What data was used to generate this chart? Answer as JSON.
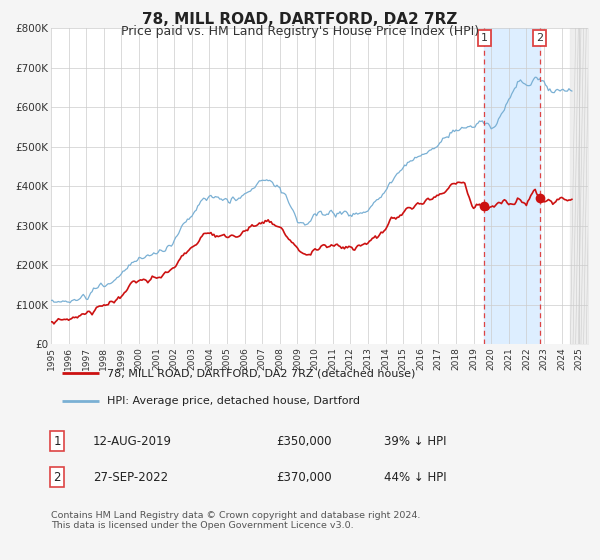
{
  "title": "78, MILL ROAD, DARTFORD, DA2 7RZ",
  "subtitle": "Price paid vs. HM Land Registry's House Price Index (HPI)",
  "title_fontsize": 11,
  "subtitle_fontsize": 9,
  "background_color": "#f5f5f5",
  "plot_bg_color": "#ffffff",
  "grid_color": "#cccccc",
  "ylim": [
    0,
    800000
  ],
  "yticks": [
    0,
    100000,
    200000,
    300000,
    400000,
    500000,
    600000,
    700000,
    800000
  ],
  "ytick_labels": [
    "£0",
    "£100K",
    "£200K",
    "£300K",
    "£400K",
    "£500K",
    "£600K",
    "£700K",
    "£800K"
  ],
  "xlim": [
    1995,
    2025.5
  ],
  "hpi_color": "#7ab0d4",
  "price_color": "#cc1111",
  "marker1_x": 2019.62,
  "marker1_y": 350000,
  "marker2_x": 2022.75,
  "marker2_y": 370000,
  "dashed_color": "#dd4444",
  "shade_color": "#ddeeff",
  "shade_x1": 2019.62,
  "shade_x2": 2022.75,
  "legend_label1": "78, MILL ROAD, DARTFORD, DA2 7RZ (detached house)",
  "legend_label2": "HPI: Average price, detached house, Dartford",
  "table_row1": [
    "1",
    "12-AUG-2019",
    "£350,000",
    "39% ↓ HPI"
  ],
  "table_row2": [
    "2",
    "27-SEP-2022",
    "£370,000",
    "44% ↓ HPI"
  ],
  "footer": "Contains HM Land Registry data © Crown copyright and database right 2024.\nThis data is licensed under the Open Government Licence v3.0."
}
